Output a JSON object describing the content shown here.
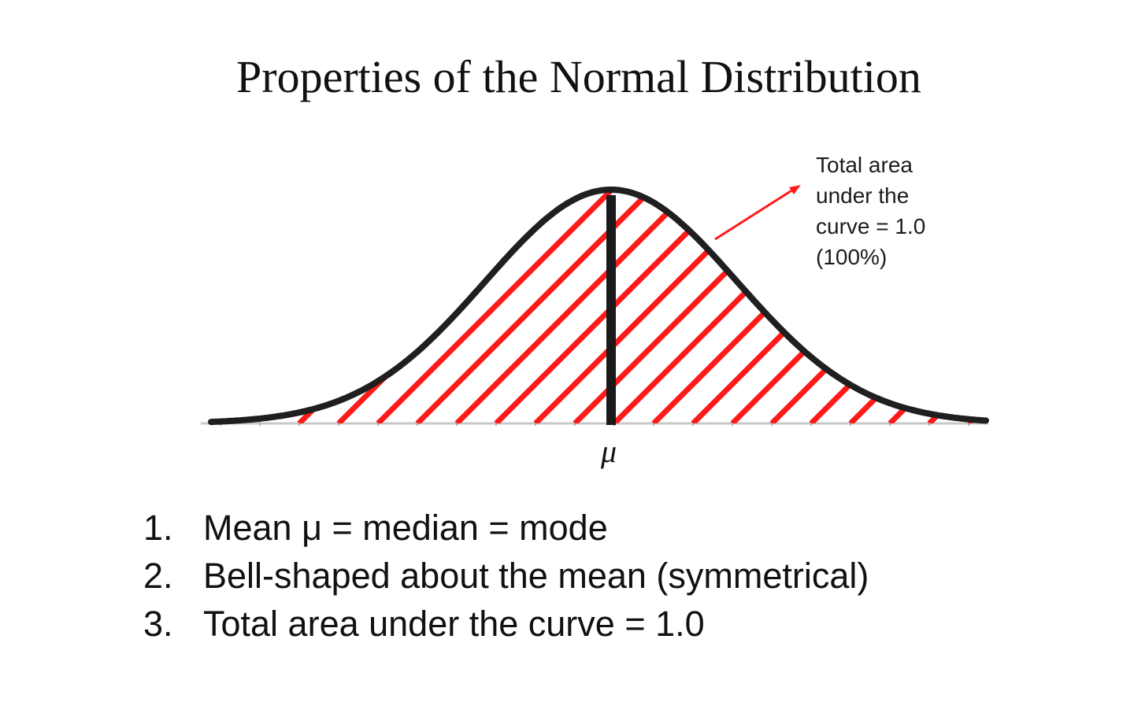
{
  "title": "Properties of the Normal Distribution",
  "annotation": {
    "lines": [
      "Total area",
      "under the",
      "curve = 1.0",
      "(100%)"
    ]
  },
  "axis": {
    "mean_label": "μ"
  },
  "properties": [
    {
      "number": "1.",
      "text": "Mean μ = median = mode"
    },
    {
      "number": "2.",
      "text": "Bell-shaped about the mean (symmetrical)"
    },
    {
      "number": "3.",
      "text": "Total area under the curve = 1.0"
    }
  ],
  "colors": {
    "curve": "#1f1f1f",
    "hatch": "#ff1a1a",
    "axis": "#c8c8c8",
    "arrow": "#ff1a1a",
    "text": "#111111"
  },
  "icons": {
    "arrow": "arrow-up-right-icon"
  }
}
